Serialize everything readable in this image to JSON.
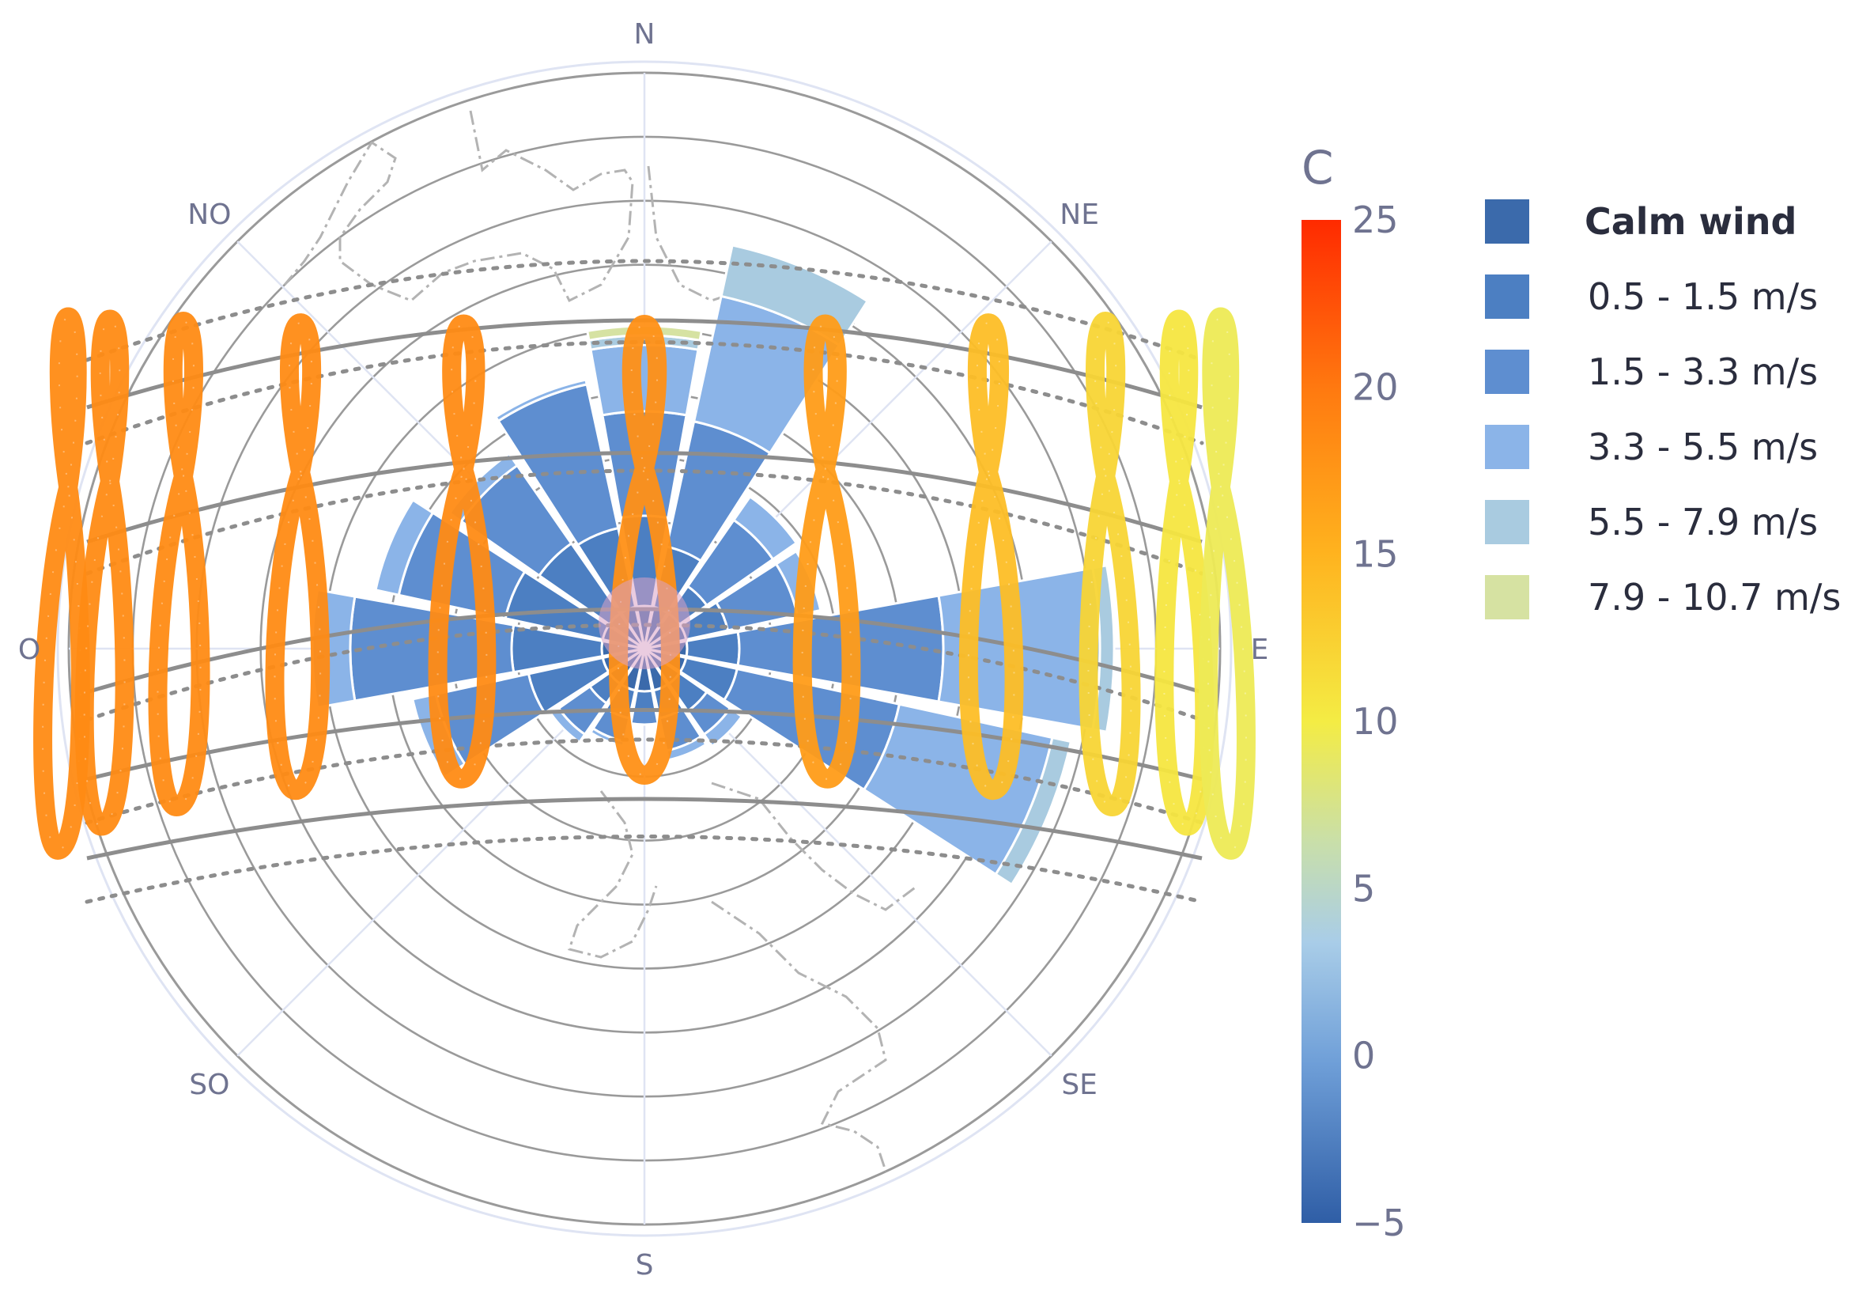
{
  "chart_data": {
    "type": "barpolar",
    "title": "",
    "directions": [
      "N",
      "NE",
      "E",
      "SE",
      "S",
      "SO",
      "O",
      "NO"
    ],
    "radial_range": [
      0,
      12
    ],
    "sectors_deg": [
      0,
      22.5,
      45,
      67.5,
      90,
      112.5,
      135,
      157.5,
      180,
      202.5,
      225,
      247.5,
      270,
      292.5,
      315,
      337.5
    ],
    "wind_legend": [
      {
        "name": "Calm wind",
        "color": "#3b6aab"
      },
      {
        "name": "0.5 - 1.5 m/s",
        "color": "#4c7fc2"
      },
      {
        "name": "1.5 - 3.3 m/s",
        "color": "#5e8ed0"
      },
      {
        "name": "3.3 - 5.5 m/s",
        "color": "#8bb4e8"
      },
      {
        "name": "5.5 - 7.9 m/s",
        "color": "#a9cbe0"
      },
      {
        "name": "7.9 - 10.7 m/s",
        "color": "#d6e2a2"
      }
    ],
    "wind_values_cumulative": [
      [
        0.9,
        2.8,
        5.0,
        6.4,
        6.6,
        6.8
      ],
      [
        0.9,
        2.2,
        4.9,
        7.6,
        8.7,
        8.7
      ],
      [
        0.9,
        1.6,
        3.3,
        3.9,
        3.9,
        3.9
      ],
      [
        0.9,
        1.8,
        3.3,
        3.8,
        3.8,
        3.8
      ],
      [
        0.9,
        2.0,
        6.3,
        9.6,
        9.9,
        9.9
      ],
      [
        0.9,
        2.0,
        5.5,
        8.8,
        9.2,
        9.2
      ],
      [
        0.9,
        1.6,
        2.2,
        2.5,
        2.5,
        2.5
      ],
      [
        0.9,
        1.5,
        2.2,
        2.4,
        2.4,
        2.4
      ],
      [
        0.9,
        1.3,
        1.6,
        1.6,
        1.6,
        1.6
      ],
      [
        0.9,
        1.5,
        2.0,
        2.1,
        2.1,
        2.1
      ],
      [
        0.9,
        1.4,
        2.2,
        2.4,
        2.4,
        2.4
      ],
      [
        0.9,
        2.5,
        4.5,
        5.0,
        5.0,
        5.0
      ],
      [
        0.9,
        2.8,
        6.2,
        7.0,
        7.0,
        7.0
      ],
      [
        0.9,
        3.0,
        5.3,
        5.8,
        5.8,
        5.8
      ],
      [
        0.9,
        2.7,
        4.7,
        5.0,
        5.0,
        5.0
      ],
      [
        0.9,
        2.6,
        5.7,
        5.8,
        5.8,
        5.8
      ]
    ],
    "colorbar": {
      "title": "C",
      "range": [
        -5,
        25
      ],
      "ticks": [
        "25",
        "20",
        "15",
        "10",
        "5",
        "0",
        "−5"
      ],
      "tick_values": [
        25,
        20,
        15,
        10,
        5,
        0,
        -5
      ]
    },
    "analemmas": [
      {
        "azimuth_deg": -80,
        "temp": 18.5
      },
      {
        "azimuth_deg": -66,
        "temp": 18.5
      },
      {
        "azimuth_deg": -52,
        "temp": 18.5
      },
      {
        "azimuth_deg": -36,
        "temp": 18.5
      },
      {
        "azimuth_deg": -18,
        "temp": 18.5
      },
      {
        "azimuth_deg": 0,
        "temp": 18.0
      },
      {
        "azimuth_deg": 18,
        "temp": 17.0
      },
      {
        "azimuth_deg": 36,
        "temp": 14.0
      },
      {
        "azimuth_deg": 52,
        "temp": 12.0
      },
      {
        "azimuth_deg": 66,
        "temp": 10.5
      },
      {
        "azimuth_deg": 80,
        "temp": 9.5
      }
    ]
  }
}
